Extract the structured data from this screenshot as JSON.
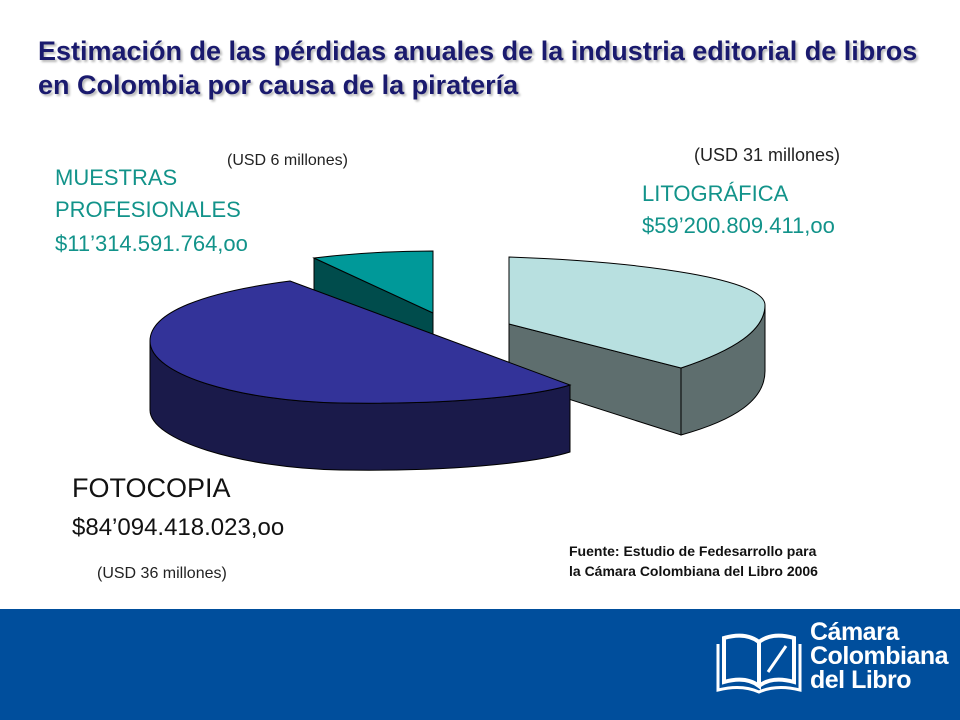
{
  "title": "Estimación de las pérdidas anuales de la industria editorial de libros en Colombia por causa de la piratería",
  "chart_data": {
    "type": "pie",
    "style": "3d-exploded",
    "slices": [
      {
        "name": "LITOGRÁFICA",
        "value_label": "$59’200.809.411,oo",
        "value": 59200809411,
        "usd_label": "(USD 31 millones)",
        "color_top": "#b8e0e0",
        "color_side": "#5e6e6e"
      },
      {
        "name": "FOTOCOPIA",
        "value_label": "$84’094.418.023,oo",
        "value": 84094418023,
        "usd_label": "(USD 36 millones)",
        "color_top": "#333399",
        "color_side": "#1a1a4a"
      },
      {
        "name": "MUESTRAS PROFESIONALES",
        "value_label": "$11’314.591.764,oo",
        "value": 11314591764,
        "usd_label": "(USD 6 millones)",
        "color_top": "#009999",
        "color_side": "#004c4c"
      }
    ]
  },
  "labels": {
    "muestras_line1": "MUESTRAS",
    "muestras_line2": "PROFESIONALES",
    "muestras_value": "$11’314.591.764,oo",
    "muestras_usd": "(USD 6 millones)",
    "lito_name": "LITOGRÁFICA",
    "lito_value": "$59’200.809.411,oo",
    "lito_usd": "(USD 31 millones)",
    "foto_name": "FOTOCOPIA",
    "foto_value": "$84’094.418.023,oo",
    "foto_usd": "(USD 36 millones)"
  },
  "source": {
    "line1": "Fuente: Estudio de Fedesarrollo para",
    "line2": "la Cámara Colombiana del Libro 2006"
  },
  "logo": {
    "line1": "Cámara",
    "line2": "Colombiana",
    "line3": "del Libro"
  },
  "colors": {
    "footer": "#004e9c",
    "label_accent": "#12938a",
    "title": "#1a1a6e"
  }
}
